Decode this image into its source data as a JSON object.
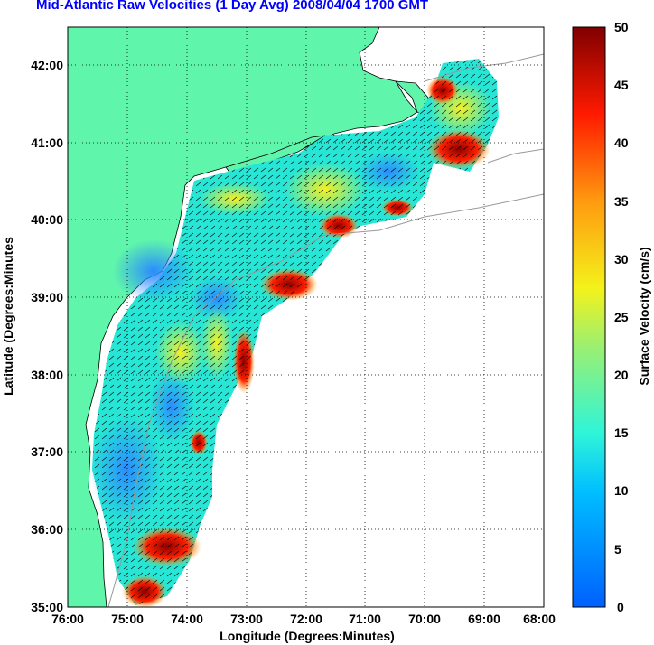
{
  "title": "Mid-Atlantic Raw Velocities (1 Day Avg) 2008/04/04 1700 GMT",
  "xlabel": "Longitude (Degrees:Minutes)",
  "ylabel": "Latitude (Degrees:Minutes",
  "colorbar_label": "Surface Velocity (cm/s)",
  "x_ticks": [
    "76:00",
    "75:00",
    "74:00",
    "73:00",
    "72:00",
    "71:00",
    "70:00",
    "69:00",
    "68:00"
  ],
  "y_ticks": [
    "42:00",
    "41:00",
    "40:00",
    "39:00",
    "38:00",
    "37:00",
    "36:00",
    "35:00"
  ],
  "colorbar_ticks": [
    "50",
    "45",
    "40",
    "35",
    "30",
    "25",
    "20",
    "15",
    "10",
    "5",
    "0"
  ],
  "colors": {
    "land": "#5ff5ab",
    "grid": "#000000",
    "title": "#0000ff"
  },
  "map": {
    "lon_range": [
      -76,
      -68
    ],
    "lat_range": [
      35,
      42.5
    ],
    "grid": "dotted",
    "colorbar_range": [
      0,
      50
    ]
  }
}
